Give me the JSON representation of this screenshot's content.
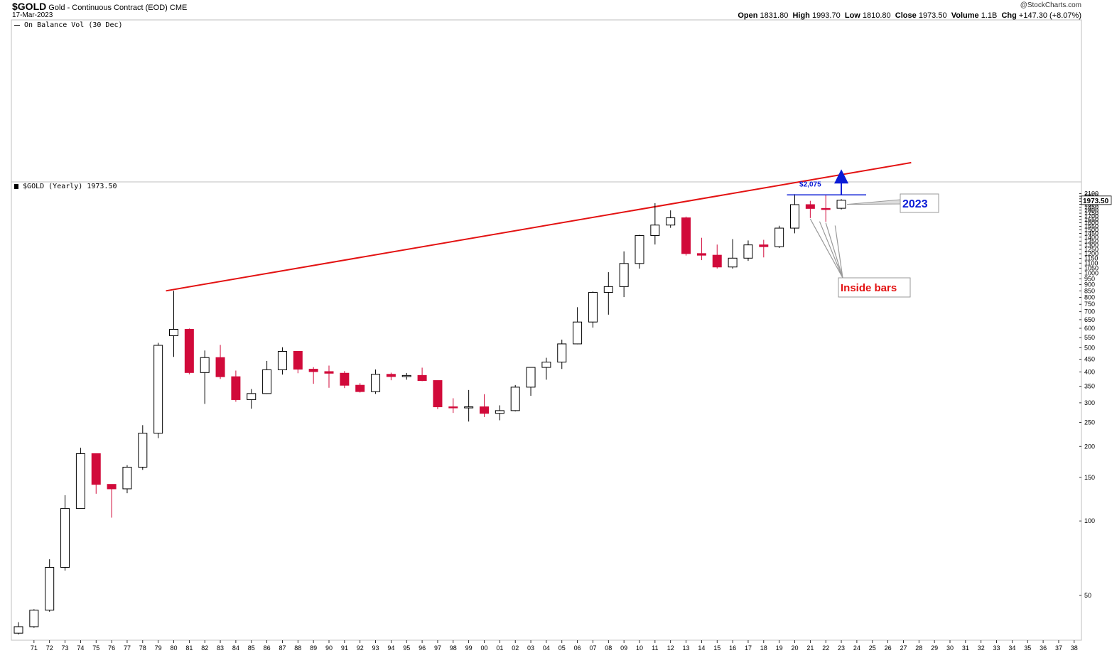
{
  "header": {
    "symbol": "$GOLD",
    "description": "Gold - Continuous Contract (EOD)",
    "exchange": "CME",
    "date": "17-Mar-2023",
    "brand": "@StockCharts.com",
    "ohlc": {
      "open_label": "Open",
      "open": "1831.80",
      "high_label": "High",
      "high": "1993.70",
      "low_label": "Low",
      "low": "1810.80",
      "close_label": "Close",
      "close": "1973.50",
      "volume_label": "Volume",
      "volume": "1.1B",
      "chg_label": "Chg",
      "chg": "+147.30 (+8.07%)"
    }
  },
  "indicator_panel": {
    "label": "On Balance Vol (30 Dec)"
  },
  "price_panel": {
    "label": "$GOLD (Yearly) 1973.50",
    "last_price": "1973.50"
  },
  "annotations": {
    "target_label": "$2,075",
    "inside_bars": "Inside bars",
    "current_year": "2023"
  },
  "colors": {
    "up": "#ffffff",
    "down": "#d10a3a",
    "trendline": "#e31212",
    "annotation_blue": "#0a1bd6",
    "annotation_red": "#e31212"
  },
  "chart_data": {
    "type": "candlestick",
    "title": "$GOLD (Yearly)",
    "y_scale": "log",
    "ylim": [
      35,
      2250
    ],
    "x_tick_labels": [
      "71",
      "72",
      "73",
      "74",
      "75",
      "76",
      "77",
      "78",
      "79",
      "80",
      "81",
      "82",
      "83",
      "84",
      "85",
      "86",
      "87",
      "88",
      "89",
      "90",
      "91",
      "92",
      "93",
      "94",
      "95",
      "96",
      "97",
      "98",
      "99",
      "00",
      "01",
      "02",
      "03",
      "04",
      "05",
      "06",
      "07",
      "08",
      "09",
      "10",
      "11",
      "12",
      "13",
      "14",
      "15",
      "16",
      "17",
      "18",
      "19",
      "20",
      "21",
      "22",
      "23",
      "24",
      "25",
      "26",
      "27",
      "28",
      "29",
      "30",
      "31",
      "32",
      "33",
      "34",
      "35",
      "36",
      "37",
      "38"
    ],
    "y_tick_labels": [
      50,
      100,
      150,
      200,
      250,
      300,
      350,
      400,
      450,
      500,
      550,
      600,
      650,
      700,
      750,
      800,
      850,
      900,
      950,
      1000,
      1050,
      1100,
      1150,
      1200,
      1250,
      1300,
      1350,
      1400,
      1450,
      1500,
      1550,
      1600,
      1650,
      1700,
      1750,
      1800,
      1850,
      1900,
      1950,
      2000,
      2050,
      2100
    ],
    "candles": [
      {
        "year": "70",
        "o": 35.2,
        "h": 39.0,
        "l": 34.8,
        "c": 37.4
      },
      {
        "year": "71",
        "o": 37.4,
        "h": 44.0,
        "l": 37.0,
        "c": 43.6
      },
      {
        "year": "72",
        "o": 43.6,
        "h": 70.0,
        "l": 43.0,
        "c": 64.9
      },
      {
        "year": "73",
        "o": 64.9,
        "h": 127.0,
        "l": 63.0,
        "c": 112.3
      },
      {
        "year": "74",
        "o": 112.3,
        "h": 197.5,
        "l": 112.0,
        "c": 187.0
      },
      {
        "year": "75",
        "o": 187.0,
        "h": 186.5,
        "l": 128.8,
        "c": 140.5
      },
      {
        "year": "76",
        "o": 140.5,
        "h": 140.5,
        "l": 103.1,
        "c": 134.8
      },
      {
        "year": "77",
        "o": 134.8,
        "h": 168.0,
        "l": 129.4,
        "c": 164.9
      },
      {
        "year": "78",
        "o": 164.9,
        "h": 243.7,
        "l": 160.8,
        "c": 226.0
      },
      {
        "year": "79",
        "o": 226.0,
        "h": 524.0,
        "l": 216.0,
        "c": 512.0
      },
      {
        "year": "80",
        "o": 560.0,
        "h": 850.0,
        "l": 460.0,
        "c": 594.0
      },
      {
        "year": "81",
        "o": 594.0,
        "h": 599.0,
        "l": 391.0,
        "c": 397.5
      },
      {
        "year": "82",
        "o": 397.5,
        "h": 488.0,
        "l": 297.0,
        "c": 456.9
      },
      {
        "year": "83",
        "o": 456.9,
        "h": 514.0,
        "l": 374.5,
        "c": 382.4
      },
      {
        "year": "84",
        "o": 382.4,
        "h": 405.0,
        "l": 303.0,
        "c": 309.0
      },
      {
        "year": "85",
        "o": 309.0,
        "h": 341.0,
        "l": 284.0,
        "c": 327.0
      },
      {
        "year": "86",
        "o": 327.0,
        "h": 443.0,
        "l": 326.0,
        "c": 408.0
      },
      {
        "year": "87",
        "o": 408.0,
        "h": 503.0,
        "l": 390.0,
        "c": 484.1
      },
      {
        "year": "88",
        "o": 484.1,
        "h": 485.0,
        "l": 395.0,
        "c": 410.1
      },
      {
        "year": "89",
        "o": 410.1,
        "h": 418.0,
        "l": 358.0,
        "c": 401.0
      },
      {
        "year": "90",
        "o": 401.0,
        "h": 424.0,
        "l": 345.0,
        "c": 395.0
      },
      {
        "year": "91",
        "o": 395.0,
        "h": 403.0,
        "l": 344.0,
        "c": 353.2
      },
      {
        "year": "92",
        "o": 353.2,
        "h": 360.0,
        "l": 330.0,
        "c": 333.0
      },
      {
        "year": "93",
        "o": 333.0,
        "h": 409.0,
        "l": 326.0,
        "c": 391.0
      },
      {
        "year": "94",
        "o": 391.0,
        "h": 397.0,
        "l": 370.0,
        "c": 383.0
      },
      {
        "year": "95",
        "o": 383.0,
        "h": 396.0,
        "l": 372.0,
        "c": 387.0
      },
      {
        "year": "96",
        "o": 387.0,
        "h": 416.0,
        "l": 367.0,
        "c": 369.0
      },
      {
        "year": "97",
        "o": 369.0,
        "h": 368.0,
        "l": 283.0,
        "c": 289.0
      },
      {
        "year": "98",
        "o": 289.0,
        "h": 313.0,
        "l": 273.0,
        "c": 288.0
      },
      {
        "year": "99",
        "o": 288.0,
        "h": 338.0,
        "l": 252.0,
        "c": 289.0
      },
      {
        "year": "00",
        "o": 289.0,
        "h": 325.0,
        "l": 263.0,
        "c": 272.0
      },
      {
        "year": "01",
        "o": 272.0,
        "h": 293.0,
        "l": 255.0,
        "c": 279.0
      },
      {
        "year": "02",
        "o": 279.0,
        "h": 354.0,
        "l": 277.0,
        "c": 347.0
      },
      {
        "year": "03",
        "o": 347.0,
        "h": 417.0,
        "l": 320.0,
        "c": 417.0
      },
      {
        "year": "04",
        "o": 417.0,
        "h": 456.0,
        "l": 372.0,
        "c": 438.0
      },
      {
        "year": "05",
        "o": 438.0,
        "h": 540.0,
        "l": 411.0,
        "c": 519.0
      },
      {
        "year": "06",
        "o": 519.0,
        "h": 730.0,
        "l": 517.0,
        "c": 636.0
      },
      {
        "year": "07",
        "o": 636.0,
        "h": 845.0,
        "l": 604.0,
        "c": 838.0
      },
      {
        "year": "08",
        "o": 838.0,
        "h": 1011.0,
        "l": 681.0,
        "c": 884.0
      },
      {
        "year": "09",
        "o": 884.0,
        "h": 1227.0,
        "l": 802.0,
        "c": 1096.0
      },
      {
        "year": "10",
        "o": 1096.0,
        "h": 1431.0,
        "l": 1045.0,
        "c": 1421.0
      },
      {
        "year": "11",
        "o": 1421.0,
        "h": 1920.0,
        "l": 1308.0,
        "c": 1567.0
      },
      {
        "year": "12",
        "o": 1567.0,
        "h": 1796.0,
        "l": 1527.0,
        "c": 1676.0
      },
      {
        "year": "13",
        "o": 1676.0,
        "h": 1696.0,
        "l": 1180.0,
        "c": 1202.0
      },
      {
        "year": "14",
        "o": 1202.0,
        "h": 1392.0,
        "l": 1131.0,
        "c": 1184.0
      },
      {
        "year": "15",
        "o": 1184.0,
        "h": 1307.0,
        "l": 1046.0,
        "c": 1061.0
      },
      {
        "year": "16",
        "o": 1061.0,
        "h": 1375.0,
        "l": 1045.0,
        "c": 1152.0
      },
      {
        "year": "17",
        "o": 1152.0,
        "h": 1358.0,
        "l": 1123.0,
        "c": 1303.0
      },
      {
        "year": "18",
        "o": 1303.0,
        "h": 1366.0,
        "l": 1160.0,
        "c": 1282.0
      },
      {
        "year": "19",
        "o": 1282.0,
        "h": 1557.0,
        "l": 1266.0,
        "c": 1523.0
      },
      {
        "year": "20",
        "o": 1523.0,
        "h": 2089.0,
        "l": 1451.0,
        "c": 1895.0
      },
      {
        "year": "21",
        "o": 1895.0,
        "h": 1963.0,
        "l": 1673.0,
        "c": 1829.0
      },
      {
        "year": "22",
        "o": 1829.0,
        "h": 2079.0,
        "l": 1615.0,
        "c": 1826.0
      },
      {
        "year": "23",
        "o": 1831.8,
        "h": 1993.7,
        "l": 1810.8,
        "c": 1973.5
      }
    ],
    "resistance_level": 2075,
    "trendline": {
      "from": {
        "year": "79.5",
        "price": 850
      },
      "to": {
        "year": "27.5",
        "price": 2800
      }
    }
  }
}
